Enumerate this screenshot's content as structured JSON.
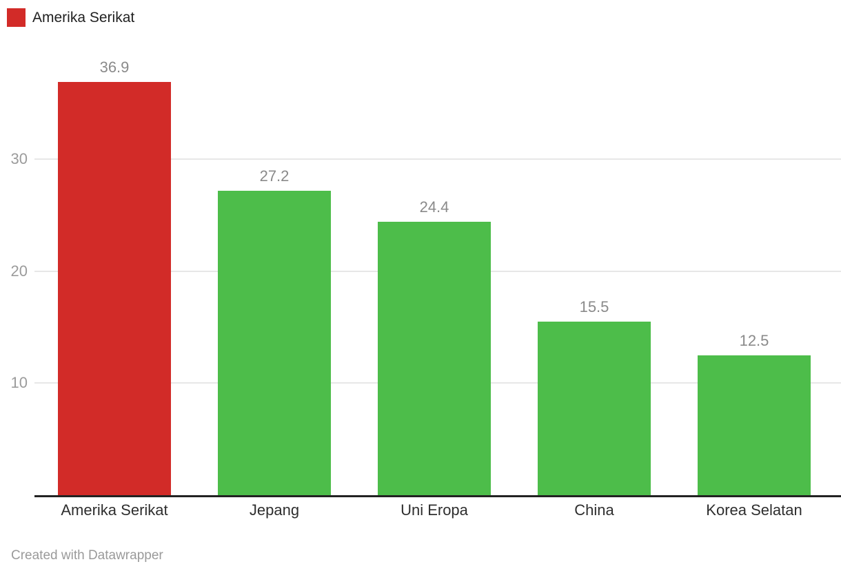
{
  "legend": {
    "label": "Amerika Serikat",
    "swatch_color": "#d22b28"
  },
  "footer": {
    "credit": "Created with Datawrapper"
  },
  "chart_data": {
    "type": "bar",
    "title": "",
    "xlabel": "",
    "ylabel": "",
    "categories": [
      "Amerika Serikat",
      "Jepang",
      "Uni Eropa",
      "China",
      "Korea Selatan"
    ],
    "values": [
      36.9,
      27.2,
      24.4,
      15.5,
      12.5
    ],
    "value_labels": [
      "36.9",
      "27.2",
      "24.4",
      "15.5",
      "12.5"
    ],
    "bar_colors": [
      "#d22b28",
      "#4dbd4a",
      "#4dbd4a",
      "#4dbd4a",
      "#4dbd4a"
    ],
    "colors": {
      "highlight": "#d22b28",
      "default": "#4dbd4a",
      "gridline": "#e7e7e7",
      "axis_line": "#222222",
      "tick_label": "#9b9b9b",
      "value_label": "#8a8a8a",
      "category_label": "#2e2e2e"
    },
    "yticks": [
      10,
      20,
      30
    ],
    "ylim": [
      0,
      40
    ],
    "grid": "horizontal",
    "legend_position": "top-left"
  }
}
